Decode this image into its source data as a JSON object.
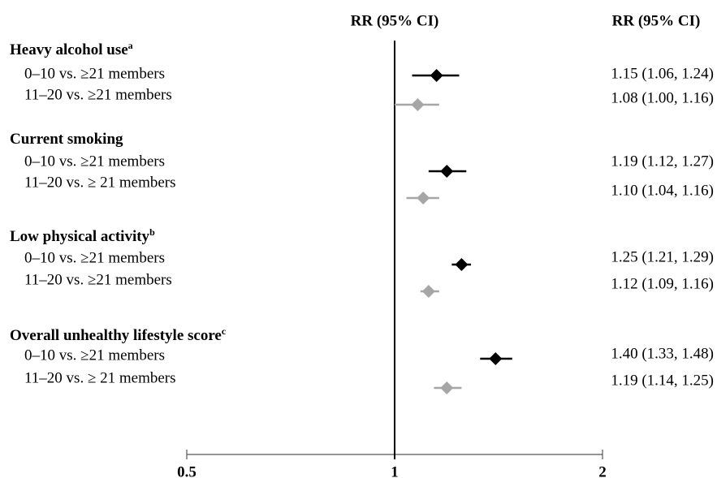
{
  "chart_data": {
    "type": "forest",
    "title": "RR (95% CI)",
    "value_column_title": "RR (95% CI)",
    "log_x": true,
    "xlim": [
      0.5,
      2
    ],
    "xticks": [
      0.5,
      1,
      2
    ],
    "reference": 1,
    "row_colors": [
      "#000000",
      "#a6a6a6"
    ],
    "groups": [
      {
        "heading": "Heavy alcohol use",
        "superscript": "a",
        "rows": [
          {
            "label": "0–10 vs. ≥21 members",
            "value": 1.15,
            "lower": 1.06,
            "upper": 1.24,
            "value_label": "1.15 (1.06, 1.24)"
          },
          {
            "label": "11–20 vs. ≥21 members",
            "value": 1.08,
            "lower": 1.0,
            "upper": 1.16,
            "value_label": "1.08 (1.00, 1.16)"
          }
        ]
      },
      {
        "heading": "Current smoking",
        "rows": [
          {
            "label": "0–10 vs. ≥21 members",
            "value": 1.19,
            "lower": 1.12,
            "upper": 1.27,
            "value_label": "1.19 (1.12, 1.27)"
          },
          {
            "label": "11–20 vs. ≥ 21 members",
            "value": 1.1,
            "lower": 1.04,
            "upper": 1.16,
            "value_label": "1.10 (1.04, 1.16)"
          }
        ]
      },
      {
        "heading": "Low physical activity",
        "superscript": "b",
        "rows": [
          {
            "label": "0–10 vs. ≥21 members",
            "value": 1.25,
            "lower": 1.21,
            "upper": 1.29,
            "value_label": "1.25 (1.21, 1.29)"
          },
          {
            "label": "11–20 vs. ≥21 members",
            "value": 1.12,
            "lower": 1.09,
            "upper": 1.16,
            "value_label": "1.12 (1.09, 1.16)"
          }
        ]
      },
      {
        "heading": "Overall unhealthy lifestyle score",
        "superscript": "c",
        "rows": [
          {
            "label": "0–10 vs. ≥21 members",
            "value": 1.4,
            "lower": 1.33,
            "upper": 1.48,
            "value_label": "1.40 (1.33, 1.48)"
          },
          {
            "label": "11–20 vs. ≥ 21 members",
            "value": 1.19,
            "lower": 1.14,
            "upper": 1.25,
            "value_label": "1.19 (1.14, 1.25)"
          }
        ]
      }
    ]
  }
}
